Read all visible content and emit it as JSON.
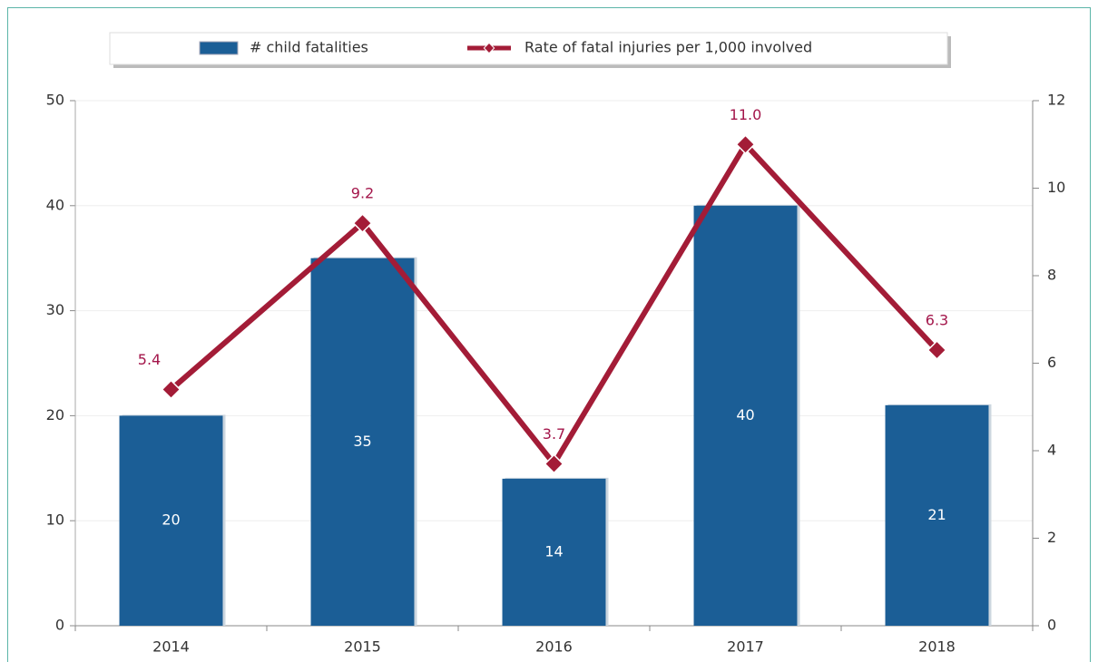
{
  "chart_data": {
    "type": "combo",
    "categories": [
      "2014",
      "2015",
      "2016",
      "2017",
      "2018"
    ],
    "series": [
      {
        "name": "# child fatalities",
        "type": "bar",
        "color": "#1b5e96",
        "values": [
          20,
          35,
          14,
          40,
          21
        ]
      },
      {
        "name": "Rate of fatal injuries per 1,000 involved",
        "type": "line",
        "axis": "y2",
        "color": "#a31c37",
        "values": [
          5.4,
          9.2,
          3.7,
          11.0,
          6.3
        ],
        "value_labels": [
          "5.4",
          "9.2",
          "3.7",
          "11.0",
          "6.3"
        ]
      }
    ],
    "ylim": [
      0,
      50
    ],
    "yticks": [
      0,
      10,
      20,
      30,
      40,
      50
    ],
    "y2lim": [
      0,
      12
    ],
    "y2ticks": [
      0,
      2,
      4,
      6,
      8,
      10,
      12
    ],
    "grid": true,
    "legend": "top"
  }
}
